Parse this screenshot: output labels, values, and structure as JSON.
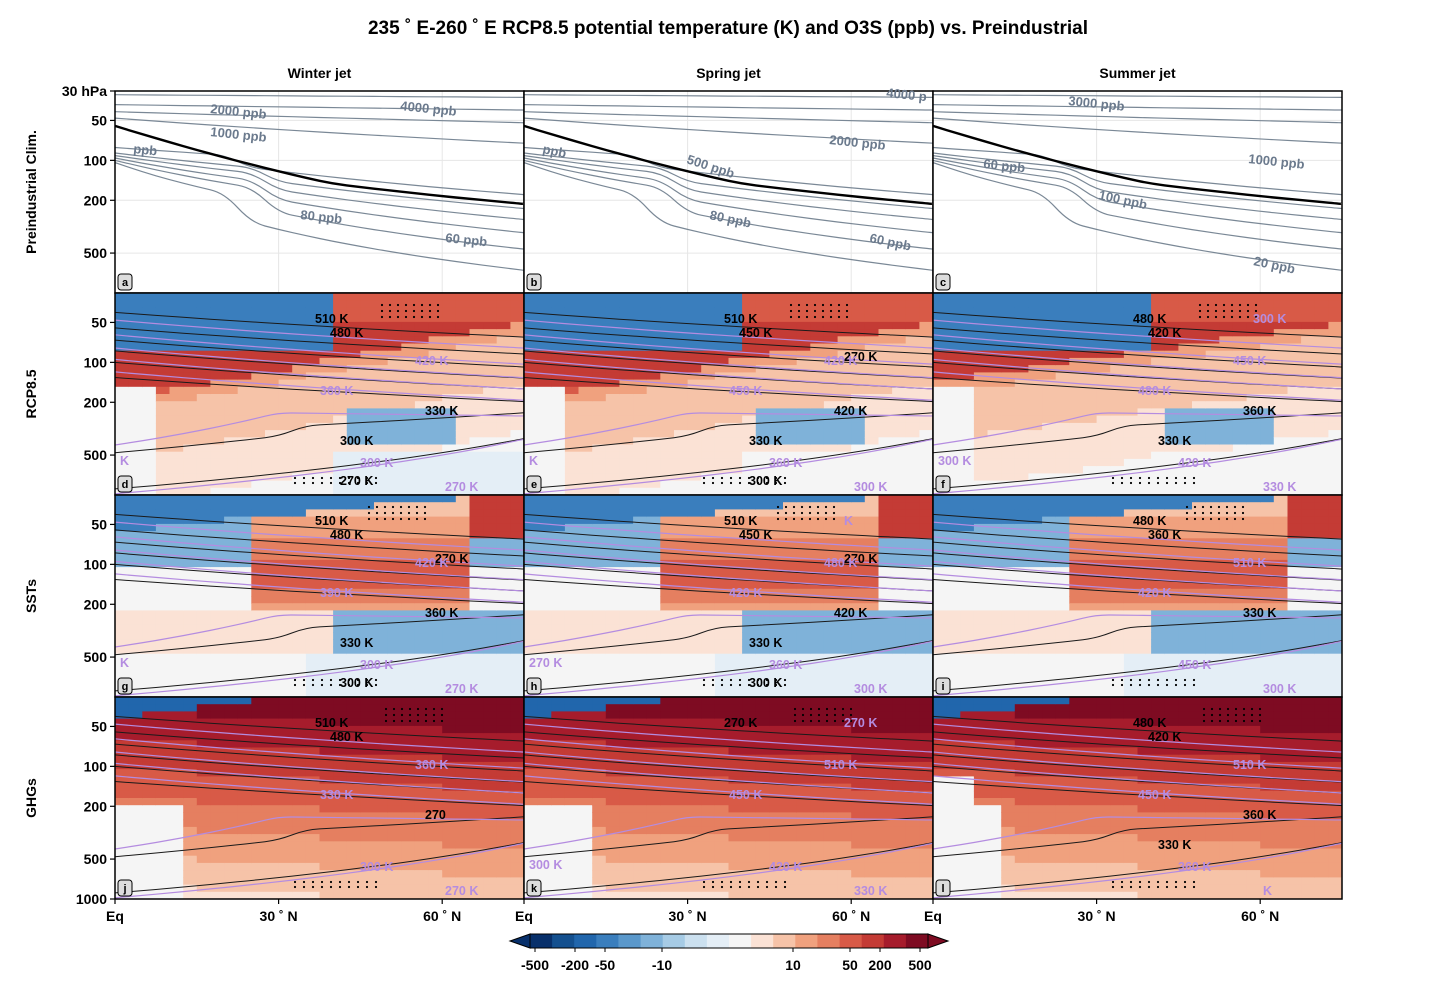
{
  "figure": {
    "title": "235$^\\circ$ E-260$^\\circ$ E RCP8.5 potential temperature (K) and O3S (ppb) vs. Preindustrial",
    "title_display": "235 ˚ E-260 ˚ E RCP8.5 potential temperature (K) and O3S (ppb) vs. Preindustrial",
    "columns": [
      "Winter jet",
      "Spring jet",
      "Summer jet"
    ],
    "rows": [
      "Preindustrial Clim.",
      "RCP8.5",
      "SSTs",
      "GHGs"
    ],
    "panel_letters": [
      "a",
      "b",
      "c",
      "d",
      "e",
      "f",
      "g",
      "h",
      "i",
      "j",
      "k",
      "l"
    ]
  },
  "chart_data": {
    "type": "heatmap",
    "x_axis": {
      "ticks": [
        "Eq",
        "30 ˚ N",
        "60 ˚ N"
      ],
      "tick_values": [
        0,
        30,
        60
      ],
      "xlim": [
        0,
        75
      ]
    },
    "y_axis": {
      "scale": "log",
      "ylim": [
        1000,
        30
      ],
      "top_row_ticks": [
        "30 hPa",
        "50",
        "100",
        "200",
        "500"
      ],
      "top_row_values": [
        30,
        50,
        100,
        200,
        500
      ],
      "other_row_ticks": [
        "50",
        "100",
        "200",
        "500"
      ],
      "other_row_values": [
        50,
        100,
        200,
        500
      ],
      "bottom_row_ticks": [
        "50",
        "100",
        "200",
        "500",
        "1000"
      ],
      "bottom_row_values": [
        50,
        100,
        200,
        500,
        1000
      ]
    },
    "colorbar": {
      "tick_labels": [
        "-500",
        "-200",
        "-50",
        "-10",
        "10",
        "50",
        "200",
        "500"
      ],
      "tick_values": [
        -500,
        -200,
        -50,
        -10,
        10,
        50,
        200,
        500
      ],
      "colors_negative": [
        "#08306b",
        "#14508f",
        "#2166ac",
        "#3a7ebd",
        "#5a98cb",
        "#7fb2d9",
        "#a6cbe5",
        "#cbe0ef",
        "#e4eef6"
      ],
      "neutral": "#f5f5f5",
      "colors_positive": [
        "#fbe2d5",
        "#f6c3a8",
        "#f0a17e",
        "#e57f60",
        "#d85a47",
        "#c43b35",
        "#a61c2c",
        "#7e0b22"
      ],
      "extend": "both"
    },
    "preindustrial_ozone_labels": {
      "winter": [
        "4000 ppb",
        "2000 ppb",
        "1000 ppb",
        "ppb",
        "80 ppb",
        "60 ppb"
      ],
      "spring": [
        "4000 p",
        "2000 ppb",
        "500 ppb",
        "ppb",
        "80 ppb",
        "60 ppb"
      ],
      "summer": [
        "3000 ppb",
        "1000 ppb",
        "60 ppb",
        "100 ppb",
        "20 ppb"
      ]
    },
    "theta_labels_black": {
      "d": [
        "510 K",
        "480 K",
        "330 K",
        "300 K",
        "270 K"
      ],
      "e": [
        "510 K",
        "450 K",
        "420 K",
        "330 K",
        "300 K",
        "270 K"
      ],
      "f": [
        "480 K",
        "420 K",
        "360 K",
        "330 K"
      ],
      "g": [
        "510 K",
        "480 K",
        "360 K",
        "330 K",
        "300 K",
        "270 K"
      ],
      "h": [
        "510 K",
        "450 K",
        "420 K",
        "330 K",
        "300 K",
        "270 K"
      ],
      "i": [
        "480 K",
        "360 K",
        "330 K"
      ],
      "j": [
        "510 K",
        "480 K",
        "270"
      ],
      "k": [
        "270 K"
      ],
      "l": [
        "480 K",
        "420 K",
        "360 K",
        "330 K"
      ]
    },
    "theta_labels_purple": {
      "d": [
        "420 K",
        "360 K",
        "300 K",
        "270 K",
        "K"
      ],
      "e": [
        "420 K",
        "450 K",
        "360 K",
        "300 K",
        "K"
      ],
      "f": [
        "450 K",
        "480 K",
        "420 K",
        "330 K",
        "300 K",
        "300 K"
      ],
      "g": [
        "420 K",
        "390 K",
        "300 K",
        "270 K",
        "K"
      ],
      "h": [
        "480 K",
        "420 K",
        "360 K",
        "300 K",
        "270 K",
        "K"
      ],
      "i": [
        "510 K",
        "420 K",
        "450 K",
        "300 K"
      ],
      "j": [
        "360 K",
        "330 K",
        "300 K",
        "270 K"
      ],
      "k": [
        "510 K",
        "450 K",
        "420 K",
        "330 K",
        "300 K",
        "270 K"
      ],
      "l": [
        "510 K",
        "450 K",
        "360 K",
        "K"
      ]
    }
  }
}
